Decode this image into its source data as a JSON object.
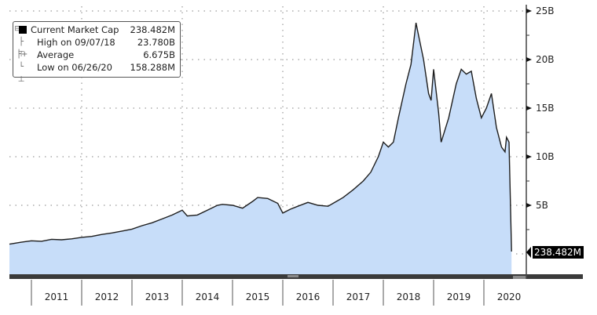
{
  "legend": {
    "items": [
      {
        "icon": "square-icon",
        "label": "Current Market Cap",
        "value": "238.482M"
      },
      {
        "icon": "high-marker-icon",
        "label": "High on 09/07/18",
        "value": "23.780B"
      },
      {
        "icon": "average-marker-icon",
        "label": "Average",
        "value": "6.675B"
      },
      {
        "icon": "low-marker-icon",
        "label": "Low on 06/26/20",
        "value": "158.288M"
      }
    ]
  },
  "y_axis": {
    "ticks": [
      "25B",
      "20B",
      "15B",
      "10B",
      "5B"
    ]
  },
  "x_axis": {
    "ticks": [
      "2011",
      "2012",
      "2013",
      "2014",
      "2015",
      "2016",
      "2017",
      "2018",
      "2019",
      "2020"
    ]
  },
  "current_label": "238.482M",
  "colors": {
    "fill": "#c7ddf9",
    "line": "#1e1e1e",
    "grid": "#9a9a9a",
    "axis": "#444444"
  },
  "chart_data": {
    "type": "area",
    "title": "",
    "xlabel": "",
    "ylabel": "Market Cap",
    "ylim": [
      0,
      25
    ],
    "y_unit": "B USD",
    "grid": true,
    "legend_position": "top-left",
    "series": [
      {
        "name": "Current Market Cap",
        "x": [
          2010.6,
          2010.8,
          2011.0,
          2011.2,
          2011.4,
          2011.6,
          2011.8,
          2012.0,
          2012.2,
          2012.4,
          2012.6,
          2012.8,
          2013.0,
          2013.2,
          2013.4,
          2013.6,
          2013.8,
          2014.0,
          2014.1,
          2014.3,
          2014.5,
          2014.7,
          2014.8,
          2015.0,
          2015.2,
          2015.4,
          2015.5,
          2015.7,
          2015.9,
          2016.0,
          2016.15,
          2016.3,
          2016.5,
          2016.7,
          2016.9,
          2017.0,
          2017.2,
          2017.4,
          2017.6,
          2017.75,
          2017.9,
          2018.0,
          2018.1,
          2018.2,
          2018.3,
          2018.45,
          2018.55,
          2018.65,
          2018.7,
          2018.8,
          2018.9,
          2018.95,
          2019.0,
          2019.1,
          2019.15,
          2019.3,
          2019.45,
          2019.55,
          2019.65,
          2019.75,
          2019.85,
          2019.95,
          2020.05,
          2020.15,
          2020.25,
          2020.35,
          2020.42,
          2020.45,
          2020.5,
          2020.55
        ],
        "values": [
          1.0,
          1.2,
          1.35,
          1.3,
          1.5,
          1.45,
          1.55,
          1.7,
          1.8,
          2.0,
          2.15,
          2.35,
          2.55,
          2.9,
          3.2,
          3.6,
          4.0,
          4.5,
          3.9,
          4.0,
          4.5,
          5.0,
          5.1,
          5.0,
          4.7,
          5.4,
          5.8,
          5.7,
          5.2,
          4.2,
          4.6,
          4.9,
          5.3,
          5.0,
          4.9,
          5.2,
          5.8,
          6.6,
          7.5,
          8.4,
          10.0,
          11.5,
          11.0,
          11.5,
          14.0,
          17.5,
          19.5,
          23.78,
          22.5,
          20.0,
          16.5,
          15.8,
          19.0,
          14.5,
          11.5,
          14.0,
          17.5,
          19.0,
          18.5,
          18.8,
          16.0,
          14.0,
          15.0,
          16.5,
          13.0,
          11.0,
          10.5,
          12.0,
          11.5,
          0.238
        ]
      }
    ],
    "annotations": [
      {
        "label": "High on 09/07/18",
        "value": "23.780B"
      },
      {
        "label": "Average",
        "value": "6.675B"
      },
      {
        "label": "Low on 06/26/20",
        "value": "158.288M"
      },
      {
        "label": "Current",
        "value": "238.482M"
      }
    ],
    "x_tick_labels": [
      "2011",
      "2012",
      "2013",
      "2014",
      "2015",
      "2016",
      "2017",
      "2018",
      "2019",
      "2020"
    ],
    "y_tick_labels": [
      "5B",
      "10B",
      "15B",
      "20B",
      "25B"
    ]
  }
}
